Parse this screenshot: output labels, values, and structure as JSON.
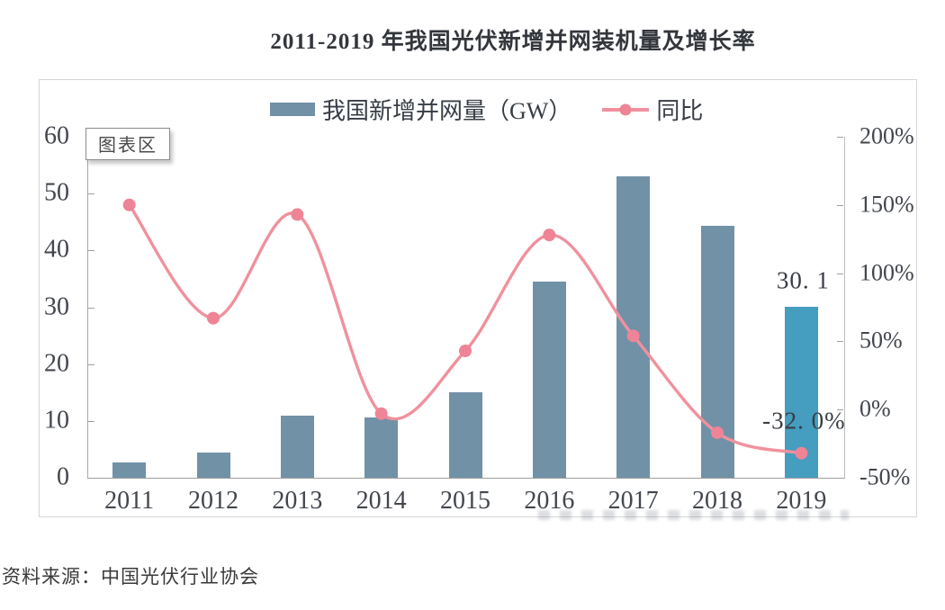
{
  "page": {
    "title": "2011-2019 年我国光伏新增并网装机量及增长率",
    "source_note": "资料来源：中国光伏行业协会"
  },
  "chart": {
    "area_label": "图表区",
    "legend": [
      {
        "label": "我国新增并网量（GW）",
        "swatch": "bar",
        "color": "#7191a7"
      },
      {
        "label": "同比",
        "swatch": "line-dot",
        "color": "#f0919d"
      }
    ],
    "data_labels": {
      "bar_2019": "30. 1",
      "line_2019": "-32. 0%"
    }
  },
  "chart_data": {
    "type": "bar+line",
    "title": "2011-2019 年我国光伏新增并网装机量及增长率",
    "categories": [
      "2011",
      "2012",
      "2013",
      "2014",
      "2015",
      "2016",
      "2017",
      "2018",
      "2019"
    ],
    "series": [
      {
        "name": "我国新增并网量（GW）",
        "type": "bar",
        "axis": "left",
        "unit": "GW",
        "values": [
          2.7,
          4.5,
          10.9,
          10.6,
          15.1,
          34.5,
          53.1,
          44.3,
          30.1
        ],
        "color": "#7191a7",
        "highlight": {
          "index": 8,
          "color": "#459dbf"
        }
      },
      {
        "name": "同比",
        "type": "line",
        "axis": "right",
        "unit": "%",
        "values": [
          150,
          67,
          143,
          -3,
          43,
          128,
          54,
          -17,
          -32
        ],
        "color": "#f0919d",
        "point_color": "#ee8496",
        "smooth": true
      }
    ],
    "left_axis": {
      "min": 0,
      "max": 60,
      "ticks": [
        60,
        50,
        40,
        30,
        20,
        10,
        0
      ]
    },
    "right_axis": {
      "min": -50,
      "max": 200,
      "ticks": [
        "200%",
        "150%",
        "100%",
        "50%",
        "0%",
        "-50%"
      ]
    },
    "legend_position": "top",
    "grid": false
  }
}
